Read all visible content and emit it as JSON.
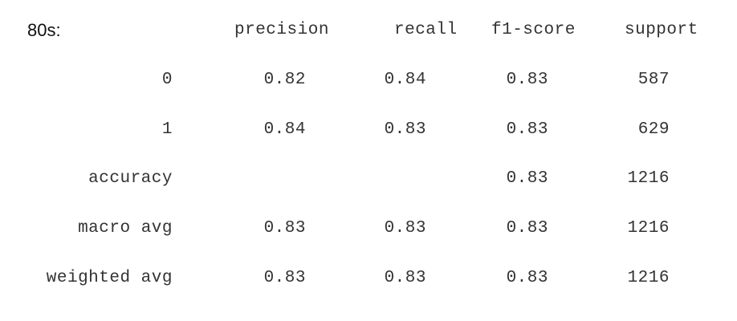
{
  "title": "80s:",
  "columns": {
    "precision": "precision",
    "recall": "recall",
    "f1": "f1-score",
    "support": "support"
  },
  "rows": [
    {
      "label": "0",
      "precision": "0.82",
      "recall": "0.84",
      "f1": "0.83",
      "support": "587"
    },
    {
      "label": "1",
      "precision": "0.84",
      "recall": "0.83",
      "f1": "0.83",
      "support": "629"
    },
    {
      "label": "accuracy",
      "precision": "",
      "recall": "",
      "f1": "0.83",
      "support": "1216"
    },
    {
      "label": "macro avg",
      "precision": "0.83",
      "recall": "0.83",
      "f1": "0.83",
      "support": "1216"
    },
    {
      "label": "weighted avg",
      "precision": "0.83",
      "recall": "0.83",
      "f1": "0.83",
      "support": "1216"
    }
  ]
}
